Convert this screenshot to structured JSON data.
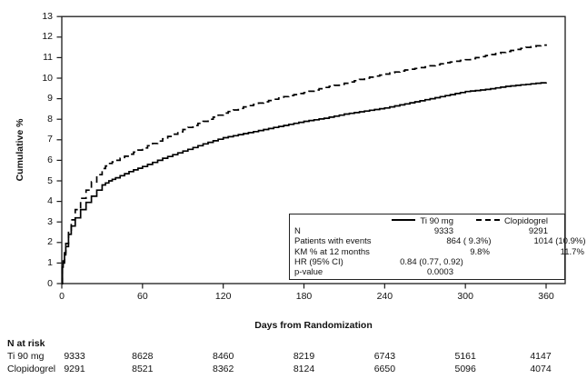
{
  "chart_data": {
    "type": "line",
    "title": "",
    "xlabel": "Days from Randomization",
    "ylabel": "Cumulative %",
    "xlim": [
      0,
      372
    ],
    "ylim": [
      0,
      13
    ],
    "x_ticks": [
      0,
      60,
      120,
      180,
      240,
      300,
      360
    ],
    "y_ticks": [
      0,
      1,
      2,
      3,
      4,
      5,
      6,
      7,
      8,
      9,
      10,
      11,
      12,
      13
    ],
    "grid": false,
    "legend_position": "inset-bottom-right",
    "curve_style": "kaplan-meier-step",
    "series": [
      {
        "name": "Ti 90 mg",
        "line_style": "solid",
        "color": "#000000",
        "x": [
          0,
          0.5,
          1,
          2,
          3,
          5,
          7,
          10,
          14,
          18,
          22,
          26,
          30,
          35,
          40,
          50,
          60,
          75,
          90,
          105,
          120,
          135,
          150,
          165,
          180,
          195,
          210,
          225,
          240,
          255,
          270,
          285,
          300,
          315,
          330,
          345,
          360
        ],
        "y": [
          0,
          0.8,
          1.0,
          1.4,
          1.8,
          2.4,
          2.8,
          3.2,
          3.6,
          3.95,
          4.25,
          4.55,
          4.8,
          5.0,
          5.15,
          5.45,
          5.7,
          6.1,
          6.45,
          6.8,
          7.1,
          7.3,
          7.5,
          7.7,
          7.9,
          8.05,
          8.25,
          8.4,
          8.55,
          8.75,
          8.95,
          9.15,
          9.35,
          9.45,
          9.6,
          9.7,
          9.8
        ]
      },
      {
        "name": "Clopidogrel",
        "line_style": "dashed",
        "color": "#000000",
        "x": [
          0,
          0.5,
          1,
          2,
          3,
          5,
          7,
          10,
          14,
          18,
          22,
          26,
          30,
          35,
          40,
          50,
          60,
          75,
          90,
          105,
          120,
          135,
          150,
          165,
          180,
          195,
          210,
          225,
          240,
          255,
          270,
          285,
          300,
          315,
          330,
          345,
          360
        ],
        "y": [
          0,
          0.85,
          1.1,
          1.5,
          1.95,
          2.6,
          3.1,
          3.6,
          4.15,
          4.55,
          4.95,
          5.3,
          5.6,
          5.85,
          6.0,
          6.3,
          6.6,
          7.05,
          7.5,
          7.9,
          8.3,
          8.6,
          8.85,
          9.1,
          9.3,
          9.55,
          9.75,
          10.0,
          10.2,
          10.4,
          10.55,
          10.75,
          10.9,
          11.1,
          11.3,
          11.5,
          11.65
        ]
      }
    ]
  },
  "axes": {
    "y_title": "Cumulative %",
    "x_title": "Days from Randomization"
  },
  "legend": {
    "header": {
      "ti": "Ti 90 mg",
      "clop": "Clopidogrel"
    },
    "rows": [
      {
        "label": "N",
        "ti": "9333",
        "clop": "9291"
      },
      {
        "label": "Patients with events",
        "ti": "864 ( 9.3%)",
        "clop": "1014 (10.9%)"
      },
      {
        "label": "KM % at 12 months",
        "ti": "9.8%",
        "clop": "11.7%"
      },
      {
        "label": "HR (95% CI)",
        "ti": "0.84 (0.77, 0.92)",
        "clop": ""
      },
      {
        "label": "p-value",
        "ti": "0.0003",
        "clop": ""
      }
    ]
  },
  "n_at_risk": {
    "title": "N at risk",
    "rows": [
      {
        "label": "Ti 90 mg",
        "values": [
          "9333",
          "8628",
          "8460",
          "8219",
          "6743",
          "5161",
          "4147"
        ]
      },
      {
        "label": "Clopidogrel",
        "values": [
          "9291",
          "8521",
          "8362",
          "8124",
          "6650",
          "5096",
          "4074"
        ]
      }
    ]
  },
  "colors": {
    "line": "#000000",
    "frame": "#1a1a1a",
    "text": "#111111"
  }
}
